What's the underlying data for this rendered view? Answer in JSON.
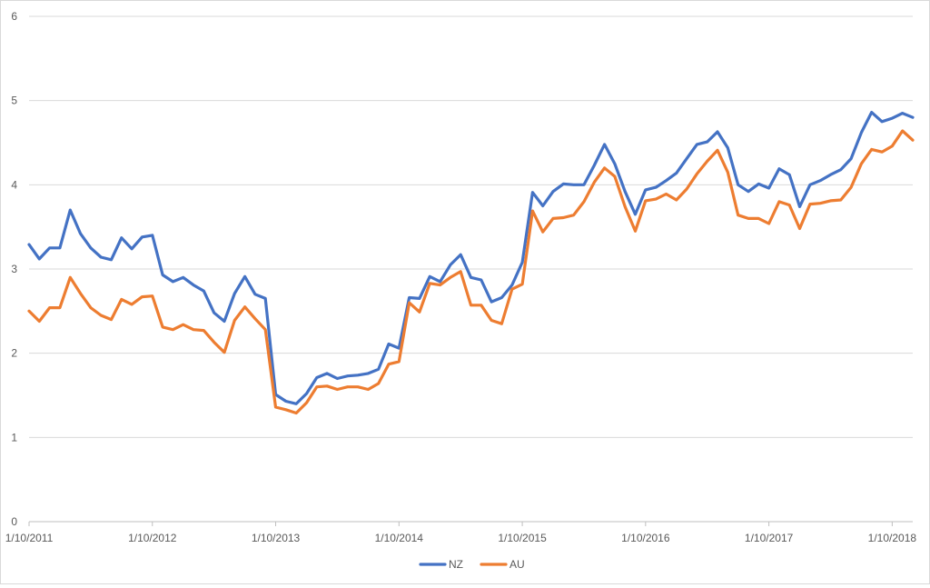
{
  "chart_data": {
    "type": "line",
    "title": "",
    "xlabel": "",
    "ylabel": "",
    "ylim": [
      0,
      6
    ],
    "yticks": [
      "0",
      "1",
      "2",
      "3",
      "4",
      "5",
      "6"
    ],
    "grid": true,
    "legend_position": "bottom",
    "x_tick_labels": [
      "1/10/2011",
      "1/10/2012",
      "1/10/2013",
      "1/10/2014",
      "1/10/2015",
      "1/10/2016",
      "1/10/2017",
      "1/10/2018"
    ],
    "x_start": "2011-10",
    "x_interval": "monthly",
    "series": [
      {
        "name": "NZ",
        "color": "#4472c4",
        "values": [
          3.29,
          3.12,
          3.25,
          3.25,
          3.7,
          3.42,
          3.25,
          3.14,
          3.11,
          3.37,
          3.24,
          3.38,
          3.4,
          2.93,
          2.85,
          2.9,
          2.81,
          2.74,
          2.48,
          2.38,
          2.71,
          2.91,
          2.7,
          2.65,
          1.51,
          1.43,
          1.4,
          1.52,
          1.71,
          1.76,
          1.7,
          1.73,
          1.74,
          1.76,
          1.81,
          2.11,
          2.06,
          2.66,
          2.65,
          2.91,
          2.85,
          3.05,
          3.17,
          2.9,
          2.87,
          2.61,
          2.66,
          2.81,
          3.08,
          3.91,
          3.75,
          3.92,
          4.01,
          4.0,
          4.0,
          4.23,
          4.48,
          4.25,
          3.92,
          3.65,
          3.94,
          3.97,
          4.05,
          4.14,
          4.31,
          4.48,
          4.51,
          4.63,
          4.44,
          4.0,
          3.92,
          4.01,
          3.96,
          4.19,
          4.12,
          3.74,
          4.0,
          4.05,
          4.12,
          4.18,
          4.31,
          4.62,
          4.86,
          4.75,
          4.79,
          4.85,
          4.8
        ]
      },
      {
        "name": "AU",
        "color": "#ed7d31",
        "values": [
          2.5,
          2.38,
          2.54,
          2.54,
          2.9,
          2.71,
          2.54,
          2.45,
          2.4,
          2.64,
          2.58,
          2.67,
          2.68,
          2.31,
          2.28,
          2.34,
          2.28,
          2.27,
          2.13,
          2.01,
          2.39,
          2.55,
          2.41,
          2.28,
          1.36,
          1.33,
          1.29,
          1.41,
          1.6,
          1.61,
          1.57,
          1.6,
          1.6,
          1.57,
          1.64,
          1.87,
          1.9,
          2.6,
          2.49,
          2.83,
          2.81,
          2.9,
          2.97,
          2.57,
          2.57,
          2.39,
          2.35,
          2.76,
          2.82,
          3.69,
          3.44,
          3.6,
          3.61,
          3.64,
          3.8,
          4.03,
          4.2,
          4.1,
          3.74,
          3.45,
          3.81,
          3.83,
          3.89,
          3.82,
          3.95,
          4.13,
          4.28,
          4.41,
          4.15,
          3.64,
          3.6,
          3.6,
          3.54,
          3.8,
          3.76,
          3.48,
          3.77,
          3.78,
          3.81,
          3.82,
          3.97,
          4.25,
          4.42,
          4.39,
          4.46,
          4.64,
          4.53
        ]
      }
    ]
  }
}
